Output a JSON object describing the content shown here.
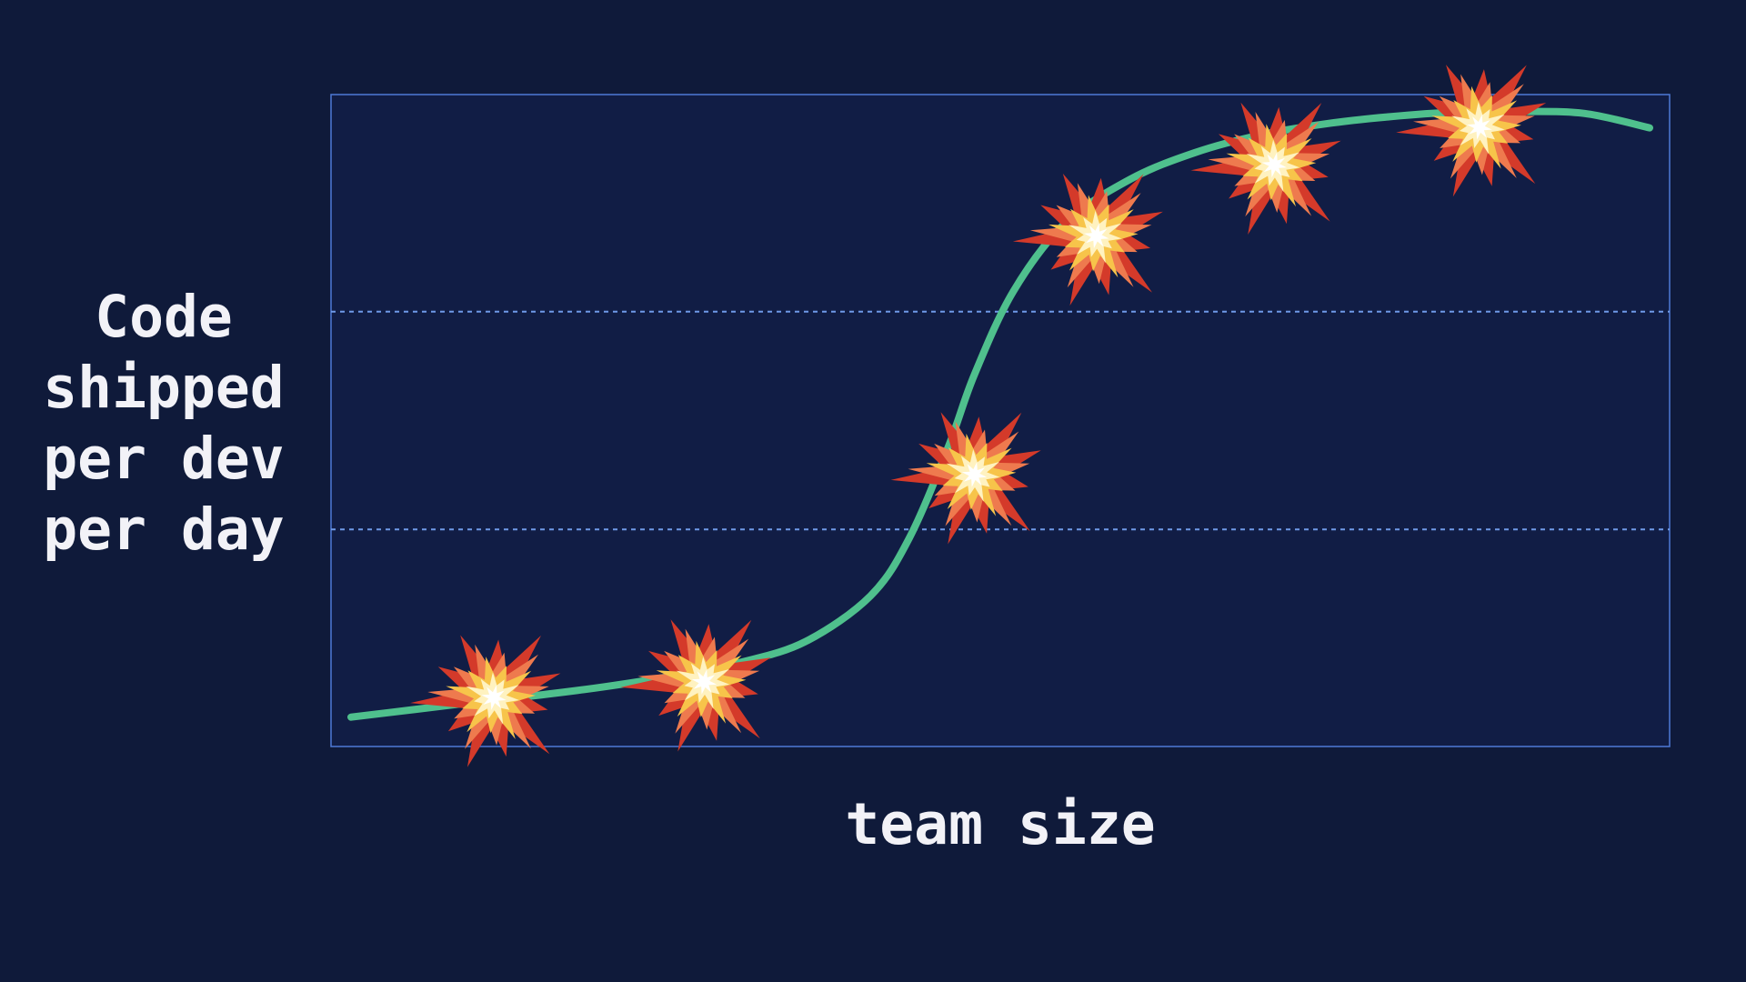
{
  "chart_data": {
    "type": "line",
    "title": "",
    "xlabel": "team size",
    "ylabel": "Code shipped per dev per day",
    "xlim": [
      0,
      100
    ],
    "ylim": [
      0,
      100
    ],
    "grid": {
      "horizontal_dashed_lines_at": [
        33.3,
        66.7
      ],
      "vertical": false
    },
    "legend": "none",
    "series": [
      {
        "values_xy": [
          [
            0,
            4.5
          ],
          [
            5,
            5.7
          ],
          [
            10,
            6.9
          ],
          [
            15,
            8.0
          ],
          [
            20,
            9.3
          ],
          [
            25,
            10.9
          ],
          [
            30,
            12.9
          ],
          [
            35,
            16.1
          ],
          [
            40,
            23.1
          ],
          [
            43,
            32
          ],
          [
            46,
            46.0
          ],
          [
            48,
            57
          ],
          [
            51,
            69.8
          ],
          [
            55,
            80.3
          ],
          [
            60,
            87.0
          ],
          [
            65,
            91.1
          ],
          [
            70,
            93.8
          ],
          [
            75,
            95.5
          ],
          [
            80,
            96.6
          ],
          [
            85,
            97.3
          ],
          [
            90,
            97.4
          ],
          [
            95,
            97.1
          ],
          [
            100,
            94.9
          ]
        ],
        "color": "#4fc08d",
        "markers": {
          "icon": "explosion-icon",
          "points": [
            [
              11,
              7.5
            ],
            [
              27.2,
              9.9
            ],
            [
              48,
              41.7
            ],
            [
              57.4,
              78.3
            ],
            [
              71.1,
              89.2
            ],
            [
              86.9,
              95.0
            ]
          ]
        }
      }
    ]
  },
  "colors": {
    "background": "#0f1a3a",
    "plot_background": "#111d45",
    "plot_border": "#4f7ad6",
    "grid": "#6f9ae8",
    "line": "#4fc08d",
    "text": "#f2f2f7"
  }
}
